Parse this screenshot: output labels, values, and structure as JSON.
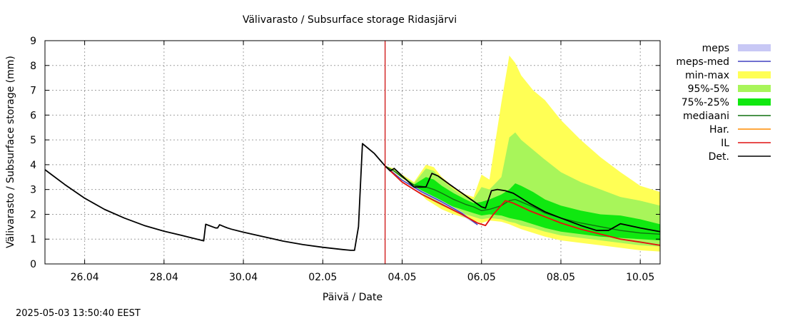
{
  "chart_data": {
    "type": "area",
    "title": "Välivarasto / Subsurface storage  Ridasjärvi",
    "xlabel": "Päivä / Date",
    "ylabel": "Välivarasto / Subsurface storage (mm)",
    "timestamp": "2025-05-03 13:50:40 EEST",
    "xlim": [
      0,
      15.5
    ],
    "ylim": [
      0,
      9
    ],
    "y_ticks": [
      0,
      1,
      2,
      3,
      4,
      5,
      6,
      7,
      8,
      9
    ],
    "x_ticks": [
      {
        "x": 1,
        "label": "26.04"
      },
      {
        "x": 3,
        "label": "28.04"
      },
      {
        "x": 5,
        "label": "30.04"
      },
      {
        "x": 7,
        "label": "02.05"
      },
      {
        "x": 9,
        "label": "04.05"
      },
      {
        "x": 11,
        "label": "06.05"
      },
      {
        "x": 13,
        "label": "08.05"
      },
      {
        "x": 15,
        "label": "10.05"
      }
    ],
    "forecast_start_x": 8.57,
    "colors": {
      "meps": "#c8c8f5",
      "meps_med": "#4040c0",
      "min_max": "#ffff55",
      "p95_5": "#a8f55a",
      "p75_25": "#10e810",
      "mediaani": "#107010",
      "har": "#ff8c00",
      "il": "#e01010",
      "det": "#000000",
      "now_line": "#cc0000",
      "grid": "#a0a0a0"
    },
    "legend": [
      {
        "key": "meps",
        "label": "meps",
        "style": "fill"
      },
      {
        "key": "meps_med",
        "label": "meps-med",
        "style": "line"
      },
      {
        "key": "min_max",
        "label": "min-max",
        "style": "fill"
      },
      {
        "key": "p95_5",
        "label": "95%-5%",
        "style": "fill"
      },
      {
        "key": "p75_25",
        "label": "75%-25%",
        "style": "fill"
      },
      {
        "key": "mediaani",
        "label": "mediaani",
        "style": "line"
      },
      {
        "key": "har",
        "label": "Har.",
        "style": "line"
      },
      {
        "key": "il",
        "label": "IL",
        "style": "line"
      },
      {
        "key": "det",
        "label": "Det.",
        "style": "line"
      }
    ],
    "bands": {
      "min_max": {
        "x": [
          8.57,
          8.8,
          9.0,
          9.3,
          9.6,
          9.8,
          10.0,
          10.3,
          10.6,
          10.8,
          11.0,
          11.2,
          11.5,
          11.7,
          11.85,
          12.0,
          12.3,
          12.6,
          13.0,
          13.5,
          14.0,
          14.5,
          15.0,
          15.5
        ],
        "upper": [
          3.95,
          3.85,
          3.6,
          3.3,
          4.0,
          3.9,
          3.5,
          3.1,
          2.8,
          2.7,
          3.6,
          3.4,
          6.5,
          8.4,
          8.1,
          7.6,
          7.0,
          6.6,
          5.8,
          5.0,
          4.3,
          3.7,
          3.15,
          2.9
        ],
        "lower": [
          3.95,
          3.7,
          3.45,
          3.15,
          2.6,
          2.4,
          2.2,
          2.0,
          1.85,
          1.75,
          1.65,
          1.75,
          1.7,
          1.6,
          1.5,
          1.4,
          1.25,
          1.1,
          0.95,
          0.85,
          0.75,
          0.65,
          0.55,
          0.5
        ]
      },
      "p95_5": {
        "x": [
          8.57,
          8.8,
          9.0,
          9.3,
          9.6,
          9.8,
          10.0,
          10.3,
          10.6,
          10.8,
          11.0,
          11.2,
          11.5,
          11.7,
          11.85,
          12.0,
          12.3,
          12.6,
          13.0,
          13.5,
          14.0,
          14.5,
          15.0,
          15.5
        ],
        "upper": [
          3.95,
          3.8,
          3.55,
          3.25,
          3.85,
          3.75,
          3.4,
          3.0,
          2.7,
          2.6,
          3.1,
          3.0,
          3.5,
          5.1,
          5.3,
          5.0,
          4.6,
          4.2,
          3.7,
          3.3,
          3.0,
          2.7,
          2.55,
          2.35
        ],
        "lower": [
          3.95,
          3.72,
          3.48,
          3.18,
          2.72,
          2.52,
          2.35,
          2.15,
          2.0,
          1.9,
          1.8,
          1.85,
          1.8,
          1.7,
          1.65,
          1.55,
          1.45,
          1.3,
          1.15,
          1.05,
          0.95,
          0.85,
          0.75,
          0.7
        ]
      },
      "p75_25": {
        "x": [
          8.57,
          8.8,
          9.0,
          9.3,
          9.6,
          9.8,
          10.0,
          10.3,
          10.6,
          10.8,
          11.0,
          11.2,
          11.5,
          11.7,
          11.85,
          12.0,
          12.3,
          12.6,
          13.0,
          13.5,
          14.0,
          14.5,
          15.0,
          15.5
        ],
        "upper": [
          3.95,
          3.75,
          3.5,
          3.2,
          3.5,
          3.4,
          3.15,
          2.85,
          2.6,
          2.45,
          2.5,
          2.6,
          2.8,
          3.0,
          3.25,
          3.15,
          2.9,
          2.6,
          2.35,
          2.15,
          2.0,
          1.95,
          1.8,
          1.6
        ],
        "lower": [
          3.95,
          3.72,
          3.48,
          3.15,
          2.8,
          2.62,
          2.5,
          2.3,
          2.15,
          2.05,
          1.95,
          2.0,
          1.95,
          1.85,
          1.8,
          1.75,
          1.6,
          1.45,
          1.3,
          1.2,
          1.1,
          1.05,
          1.0,
          0.95
        ]
      }
    },
    "series": [
      {
        "name": "meps",
        "key": "meps",
        "x": [
          8.57,
          9.0,
          9.5,
          10.0,
          10.5,
          10.9
        ],
        "y": [
          3.95,
          3.4,
          2.95,
          2.55,
          2.1,
          1.6
        ],
        "y2": [
          3.95,
          3.35,
          2.85,
          2.45,
          1.95,
          1.55
        ]
      },
      {
        "name": "meps-med",
        "key": "meps_med",
        "x": [
          8.57,
          9.0,
          9.5,
          10.0,
          10.5,
          10.9
        ],
        "y": [
          3.95,
          3.38,
          2.9,
          2.5,
          2.05,
          1.58
        ]
      },
      {
        "name": "mediaani",
        "key": "mediaani",
        "x": [
          8.57,
          8.8,
          9.0,
          9.3,
          9.6,
          9.8,
          10.0,
          10.3,
          10.6,
          10.8,
          11.0,
          11.2,
          11.5,
          11.7,
          11.85,
          12.0,
          12.3,
          12.6,
          13.0,
          13.5,
          14.0,
          14.5,
          15.0,
          15.5
        ],
        "y": [
          3.95,
          3.74,
          3.5,
          3.18,
          3.1,
          3.0,
          2.85,
          2.6,
          2.4,
          2.3,
          2.15,
          2.2,
          2.35,
          2.55,
          2.6,
          2.5,
          2.3,
          2.05,
          1.85,
          1.65,
          1.5,
          1.35,
          1.25,
          1.2
        ]
      },
      {
        "name": "Har.",
        "key": "har",
        "x": [
          8.57,
          9.0,
          9.5,
          10.0,
          10.5,
          10.9,
          11.1,
          11.3,
          11.6,
          11.8,
          12.2,
          12.6,
          13.0,
          13.5,
          14.0,
          14.5,
          15.0,
          15.5
        ],
        "y": [
          3.95,
          3.3,
          2.8,
          2.4,
          2.0,
          1.65,
          1.55,
          2.0,
          2.55,
          2.45,
          2.15,
          1.9,
          1.65,
          1.4,
          1.2,
          1.0,
          0.88,
          0.75
        ]
      },
      {
        "name": "IL",
        "key": "il",
        "x": [
          8.57,
          9.0,
          9.5,
          10.0,
          10.5,
          10.9,
          11.1,
          11.3,
          11.6,
          11.8,
          12.2,
          12.6,
          13.0,
          13.5,
          14.0,
          14.5,
          15.0,
          15.5
        ],
        "y": [
          3.95,
          3.3,
          2.8,
          2.4,
          2.0,
          1.65,
          1.55,
          2.0,
          2.55,
          2.45,
          2.15,
          1.9,
          1.65,
          1.4,
          1.2,
          1.0,
          0.88,
          0.75
        ]
      },
      {
        "name": "Det.",
        "key": "det",
        "x": [
          0,
          0.5,
          1.0,
          1.5,
          2.0,
          2.5,
          3.0,
          3.5,
          4.0,
          4.05,
          4.3,
          4.35,
          4.4,
          4.55,
          4.6,
          4.7,
          5.0,
          5.5,
          6.0,
          6.5,
          7.0,
          7.5,
          7.7,
          7.8,
          7.9,
          7.95,
          8.0,
          8.3,
          8.57,
          8.7,
          8.8,
          9.0,
          9.3,
          9.6,
          9.75,
          9.9,
          10.2,
          10.6,
          11.0,
          11.1,
          11.25,
          11.4,
          11.6,
          11.8,
          12.2,
          12.6,
          13.0,
          13.5,
          13.9,
          14.2,
          14.5,
          15.0,
          15.5
        ],
        "y": [
          3.8,
          3.2,
          2.65,
          2.2,
          1.85,
          1.55,
          1.32,
          1.13,
          0.93,
          1.6,
          1.45,
          1.45,
          1.58,
          1.48,
          1.45,
          1.4,
          1.28,
          1.1,
          0.92,
          0.78,
          0.67,
          0.58,
          0.55,
          0.55,
          1.5,
          3.2,
          4.85,
          4.45,
          3.95,
          3.75,
          3.85,
          3.55,
          3.1,
          3.1,
          3.65,
          3.55,
          3.2,
          2.75,
          2.3,
          2.25,
          2.95,
          3.0,
          2.95,
          2.85,
          2.45,
          2.1,
          1.85,
          1.55,
          1.35,
          1.35,
          1.62,
          1.45,
          1.3
        ]
      }
    ]
  }
}
